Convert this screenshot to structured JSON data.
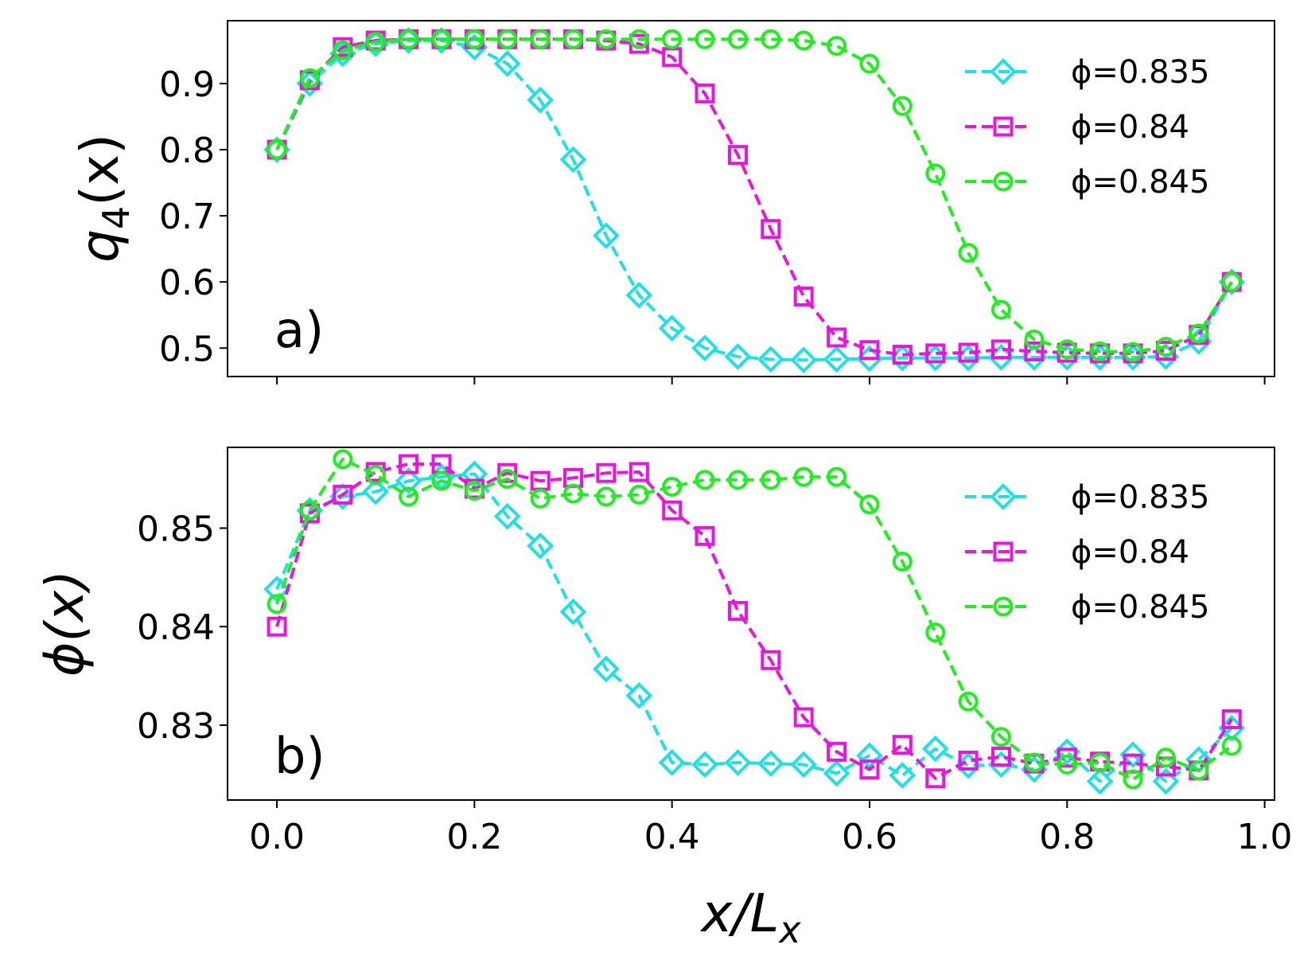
{
  "figure": {
    "xlabel": "x/L",
    "xlabel_sub": "x"
  },
  "colors": {
    "phi_0835": "#1ee0e8",
    "phi_084": "#ee12e2",
    "phi_0845": "#1ef01e"
  },
  "chart_data": [
    {
      "type": "line",
      "panel_label": "a)",
      "ylabel": "q",
      "ylabel_sub": "4",
      "ylabel_tail": "(x)",
      "xlim": [
        -0.05,
        1.01
      ],
      "ylim": [
        0.457,
        0.995
      ],
      "xticks": [
        0.0,
        0.2,
        0.4,
        0.6,
        0.8,
        1.0
      ],
      "xtick_labels": [
        "0.0",
        "0.2",
        "0.4",
        "0.6",
        "0.8",
        "1.0"
      ],
      "yticks": [
        0.5,
        0.6,
        0.7,
        0.8,
        0.9
      ],
      "ytick_labels": [
        "0.5",
        "0.6",
        "0.7",
        "0.8",
        "0.9"
      ],
      "x": [
        0.0,
        0.0333,
        0.0667,
        0.1,
        0.1333,
        0.1667,
        0.2,
        0.2333,
        0.2667,
        0.3,
        0.3333,
        0.3667,
        0.4,
        0.4333,
        0.4667,
        0.5,
        0.5333,
        0.5667,
        0.6,
        0.6333,
        0.6667,
        0.7,
        0.7333,
        0.7667,
        0.8,
        0.8333,
        0.8667,
        0.9,
        0.9333,
        0.9667
      ],
      "legend": [
        "ϕ=0.835",
        "ϕ=0.84",
        "ϕ=0.845"
      ],
      "series": [
        {
          "name": "ϕ=0.835",
          "marker": "diamond",
          "values": [
            0.8,
            0.9,
            0.945,
            0.96,
            0.965,
            0.965,
            0.955,
            0.93,
            0.875,
            0.785,
            0.67,
            0.58,
            0.53,
            0.5,
            0.487,
            0.483,
            0.482,
            0.483,
            0.484,
            0.485,
            0.485,
            0.485,
            0.486,
            0.486,
            0.486,
            0.486,
            0.486,
            0.487,
            0.51,
            0.6
          ]
        },
        {
          "name": "ϕ=0.84",
          "marker": "square",
          "values": [
            0.8,
            0.905,
            0.955,
            0.965,
            0.967,
            0.967,
            0.967,
            0.967,
            0.967,
            0.967,
            0.965,
            0.96,
            0.94,
            0.885,
            0.792,
            0.68,
            0.578,
            0.516,
            0.497,
            0.49,
            0.492,
            0.493,
            0.498,
            0.495,
            0.493,
            0.492,
            0.492,
            0.496,
            0.52,
            0.6
          ]
        },
        {
          "name": "ϕ=0.845",
          "marker": "circle",
          "values": [
            0.8,
            0.908,
            0.95,
            0.963,
            0.967,
            0.967,
            0.967,
            0.967,
            0.967,
            0.967,
            0.967,
            0.967,
            0.967,
            0.967,
            0.967,
            0.967,
            0.965,
            0.957,
            0.93,
            0.866,
            0.764,
            0.644,
            0.558,
            0.513,
            0.498,
            0.495,
            0.494,
            0.502,
            0.522,
            0.6
          ]
        }
      ]
    },
    {
      "type": "line",
      "panel_label": "b)",
      "ylabel": "ϕ(x)",
      "xlim": [
        -0.05,
        1.01
      ],
      "ylim": [
        0.8224,
        0.8582
      ],
      "xticks": [
        0.0,
        0.2,
        0.4,
        0.6,
        0.8,
        1.0
      ],
      "xtick_labels": [
        "0.0",
        "0.2",
        "0.4",
        "0.6",
        "0.8",
        "1.0"
      ],
      "yticks": [
        0.83,
        0.84,
        0.85
      ],
      "ytick_labels": [
        "0.83",
        "0.84",
        "0.85"
      ],
      "x": [
        0.0,
        0.0333,
        0.0667,
        0.1,
        0.1333,
        0.1667,
        0.2,
        0.2333,
        0.2667,
        0.3,
        0.3333,
        0.3667,
        0.4,
        0.4333,
        0.4667,
        0.5,
        0.5333,
        0.5667,
        0.6,
        0.6333,
        0.6667,
        0.7,
        0.7333,
        0.7667,
        0.8,
        0.8333,
        0.8667,
        0.9,
        0.9333,
        0.9667
      ],
      "legend": [
        "ϕ=0.835",
        "ϕ=0.84",
        "ϕ=0.845"
      ],
      "series": [
        {
          "name": "ϕ=0.835",
          "marker": "diamond",
          "values": [
            0.8438,
            0.8518,
            0.8532,
            0.8537,
            0.8548,
            0.8552,
            0.8555,
            0.8512,
            0.8482,
            0.8415,
            0.8357,
            0.833,
            0.8262,
            0.826,
            0.8262,
            0.8261,
            0.826,
            0.8251,
            0.8269,
            0.8249,
            0.8276,
            0.8259,
            0.826,
            0.8255,
            0.8273,
            0.8243,
            0.827,
            0.8243,
            0.8265,
            0.8297
          ]
        },
        {
          "name": "ϕ=0.84",
          "marker": "square",
          "values": [
            0.84,
            0.8515,
            0.8534,
            0.8557,
            0.8565,
            0.8565,
            0.854,
            0.8556,
            0.8548,
            0.8551,
            0.8556,
            0.8557,
            0.8518,
            0.8492,
            0.8416,
            0.8366,
            0.8308,
            0.8273,
            0.8255,
            0.828,
            0.8246,
            0.8264,
            0.8268,
            0.8261,
            0.8267,
            0.8263,
            0.8261,
            0.8258,
            0.8254,
            0.8306
          ]
        },
        {
          "name": "ϕ=0.845",
          "marker": "circle",
          "values": [
            0.8423,
            0.8518,
            0.857,
            0.8554,
            0.8532,
            0.8548,
            0.8538,
            0.855,
            0.853,
            0.8535,
            0.8532,
            0.8534,
            0.8542,
            0.8549,
            0.8549,
            0.8549,
            0.8552,
            0.8552,
            0.8524,
            0.8466,
            0.8394,
            0.8324,
            0.8288,
            0.8262,
            0.826,
            0.8262,
            0.8245,
            0.8267,
            0.8254,
            0.8279
          ]
        }
      ]
    }
  ]
}
